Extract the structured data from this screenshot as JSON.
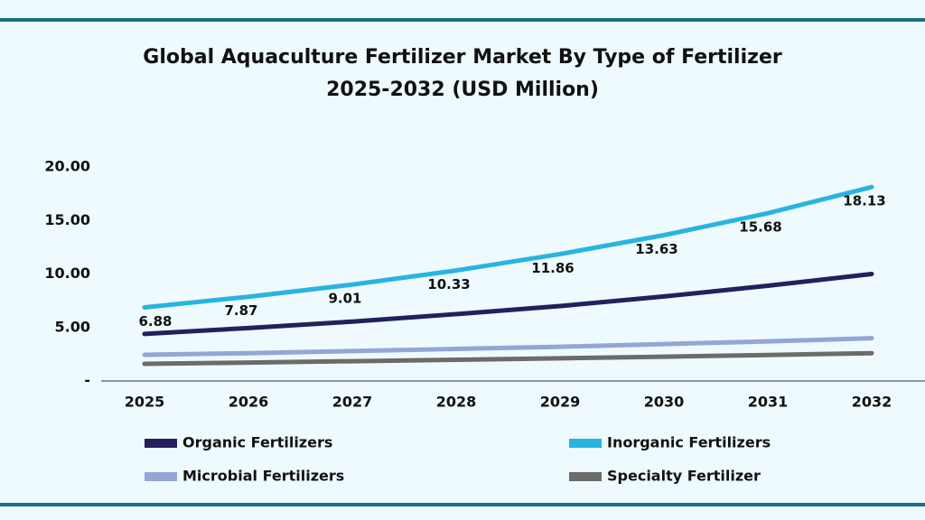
{
  "chart_data": {
    "type": "line",
    "title": [
      "Global Aquaculture Fertilizer Market By Type of Fertilizer",
      "2025-2032 (USD Million)"
    ],
    "categories": [
      "2025",
      "2026",
      "2027",
      "2028",
      "2029",
      "2030",
      "2031",
      "2032"
    ],
    "series": [
      {
        "name": "Organic Fertilizers",
        "color": "#23205c",
        "values": [
          4.4,
          4.95,
          5.55,
          6.25,
          7.0,
          7.9,
          8.9,
          10.0
        ]
      },
      {
        "name": "Inorganic Fertilizers",
        "color": "#29b4e0",
        "values": [
          6.88,
          7.87,
          9.01,
          10.33,
          11.86,
          13.63,
          15.68,
          18.13
        ],
        "show_labels": true
      },
      {
        "name": "Microbial Fertilizers",
        "color": "#94a6d6",
        "values": [
          2.45,
          2.6,
          2.8,
          3.0,
          3.2,
          3.45,
          3.7,
          4.0
        ]
      },
      {
        "name": "Specialty Fertilizer",
        "color": "#6b6b6b",
        "values": [
          1.6,
          1.72,
          1.85,
          1.98,
          2.12,
          2.27,
          2.43,
          2.6
        ]
      }
    ],
    "ylim": [
      0,
      20
    ],
    "yticks": [
      {
        "value": 0,
        "label": "-"
      },
      {
        "value": 5,
        "label": "5.00"
      },
      {
        "value": 10,
        "label": "10.00"
      },
      {
        "value": 15,
        "label": "15.00"
      },
      {
        "value": 20,
        "label": "20.00"
      }
    ]
  }
}
